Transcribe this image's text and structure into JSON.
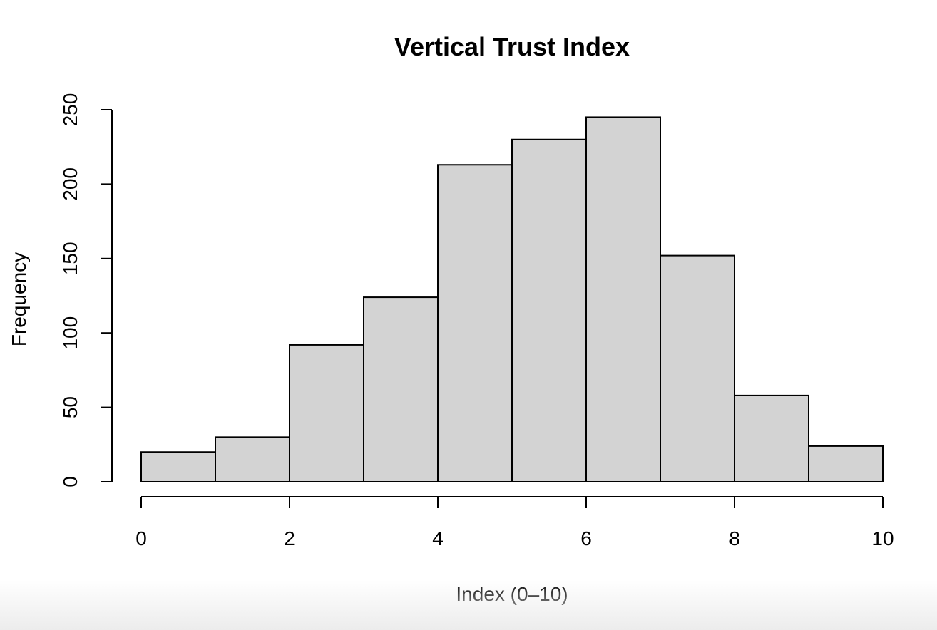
{
  "chart_data": {
    "type": "bar",
    "title": "Vertical Trust Index",
    "xlabel": "Index (0–10)",
    "ylabel": "Frequency",
    "bin_edges": [
      0,
      1,
      2,
      3,
      4,
      5,
      6,
      7,
      8,
      9,
      10
    ],
    "values": [
      20,
      30,
      92,
      124,
      213,
      230,
      245,
      152,
      58,
      24
    ],
    "xlim": [
      0,
      10
    ],
    "ylim": [
      0,
      250
    ],
    "x_ticks": [
      0,
      2,
      4,
      6,
      8,
      10
    ],
    "y_ticks": [
      0,
      50,
      100,
      150,
      200,
      250
    ],
    "x_tick_labels": [
      "0",
      "2",
      "4",
      "6",
      "8",
      "10"
    ],
    "y_tick_labels": [
      "0",
      "50",
      "100",
      "150",
      "200",
      "250"
    ],
    "bar_color": "#d3d3d3",
    "edge_color": "#000000",
    "grid": false,
    "legend": "none"
  }
}
